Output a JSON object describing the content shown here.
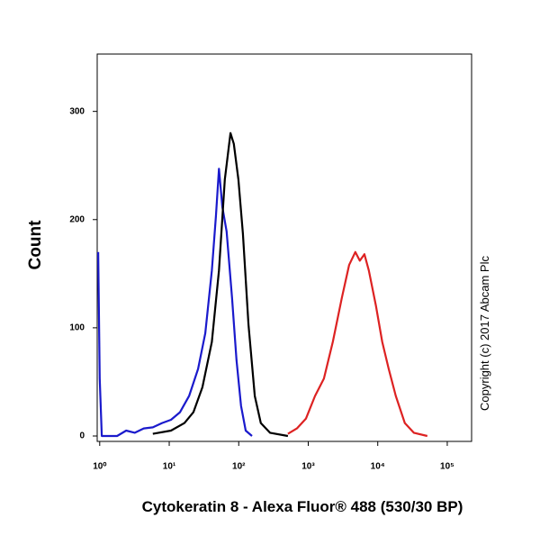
{
  "chart_data": {
    "type": "line",
    "x_label": "Cytokeratin 8  - Alexa Fluor® 488 (530/30 BP)",
    "y_label": "Count",
    "annotation": "Copyright (c) 2017 Abcam Plc",
    "xscale": "log",
    "xlim": [
      0.92,
      224000
    ],
    "ylim": [
      -5,
      353
    ],
    "xticks": [
      {
        "value": 1,
        "label": "10⁰"
      },
      {
        "value": 10,
        "label": "10¹"
      },
      {
        "value": 100,
        "label": "10²"
      },
      {
        "value": 1000,
        "label": "10³"
      },
      {
        "value": 10000,
        "label": "10⁴"
      },
      {
        "value": 100000,
        "label": "10⁵"
      }
    ],
    "yticks": [
      0,
      100,
      200,
      300
    ],
    "grid": false,
    "series": [
      {
        "color": "#1a1acc",
        "x": [
          0.95,
          1.0,
          1.07,
          1.78,
          2.4,
          3.2,
          4.3,
          5.8,
          7.9,
          10.6,
          14.3,
          19.3,
          26,
          33,
          41,
          47,
          52,
          58,
          67,
          80,
          93,
          108,
          126,
          155
        ],
        "values": [
          170,
          53,
          0,
          0,
          5,
          3,
          7,
          8,
          12,
          15,
          22,
          37,
          62,
          95,
          153,
          203,
          247,
          212,
          189,
          128,
          70,
          28,
          5,
          0
        ]
      },
      {
        "color": "#000000",
        "x": [
          5.8,
          10.6,
          16.6,
          22.3,
          30,
          41,
          52,
          63,
          76,
          85,
          99,
          115,
          138,
          170,
          208,
          282,
          510
        ],
        "values": [
          2,
          5,
          12,
          22,
          45,
          87,
          153,
          237,
          280,
          270,
          237,
          187,
          103,
          37,
          12,
          3,
          0
        ]
      },
      {
        "color": "#dd2222",
        "x": [
          510,
          687,
          925,
          1250,
          1680,
          2260,
          3050,
          3870,
          4760,
          5530,
          6420,
          7450,
          9440,
          11600,
          14400,
          18200,
          24500,
          33000,
          51600
        ],
        "values": [
          2,
          7,
          16,
          37,
          53,
          87,
          128,
          158,
          170,
          162,
          168,
          153,
          120,
          87,
          62,
          37,
          12,
          3,
          0
        ]
      }
    ]
  }
}
